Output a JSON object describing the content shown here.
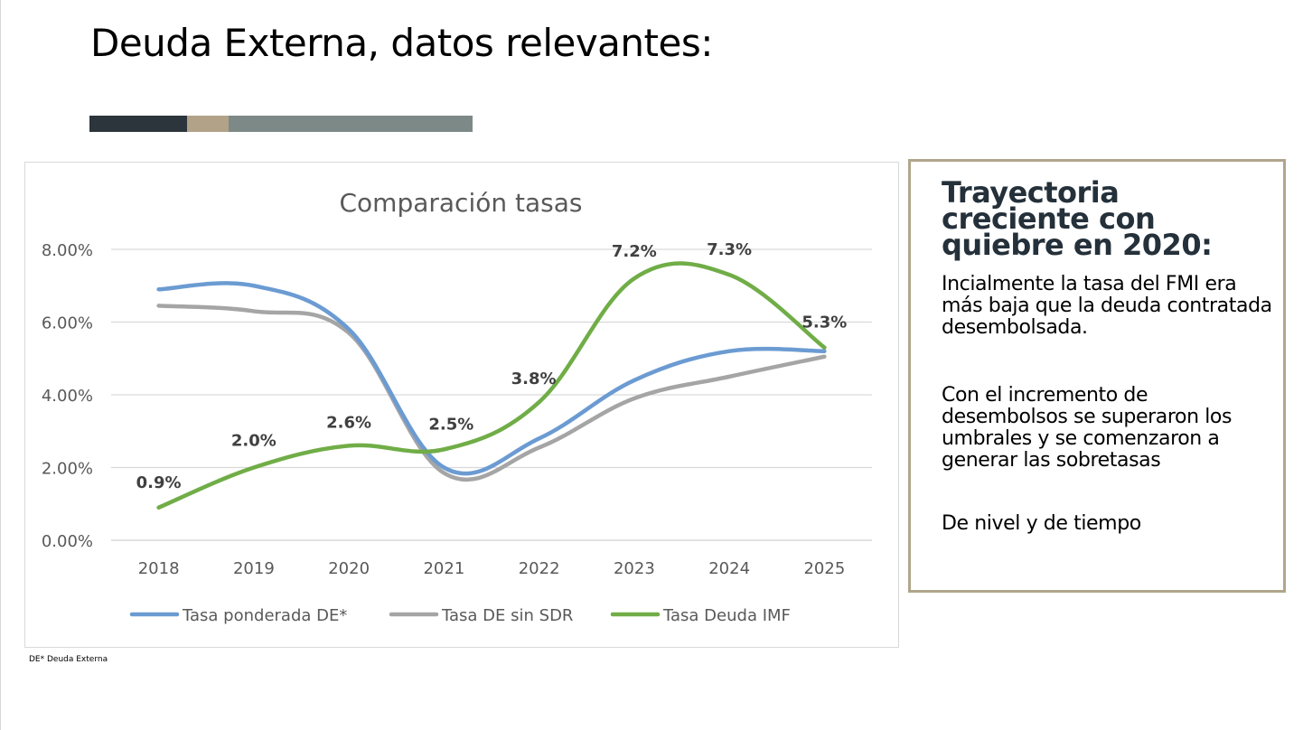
{
  "slide": {
    "title": "Deuda Externa, datos relevantes:",
    "title_bar_colors": [
      "#2b353b",
      "#b1a288",
      "#7d8987"
    ],
    "footnote": "DE* Deuda Externa"
  },
  "side_panel": {
    "heading": "Trayectoria creciente con quiebre en 2020:",
    "paragraph_1": "Incialmente la tasa del FMI era más baja que la deuda contratada desembolsada.",
    "paragraph_2": "Con el incremento de desembolsos se superaron los umbrales y se comenzaron a generar las sobretasas",
    "paragraph_3": "De nivel y de tiempo",
    "border_color": "#b0a68c"
  },
  "chart_data": {
    "type": "line",
    "title": "Comparación tasas",
    "x": [
      "2018",
      "2019",
      "2020",
      "2021",
      "2022",
      "2023",
      "2024",
      "2025"
    ],
    "y_ticks": [
      "0.00%",
      "2.00%",
      "4.00%",
      "6.00%",
      "8.00%"
    ],
    "ylim": [
      0,
      8
    ],
    "grid": true,
    "smooth": true,
    "legend": "bottom",
    "series": [
      {
        "name": "Tasa ponderada DE*",
        "color": "#6b9bd2",
        "values": [
          6.9,
          7.0,
          5.8,
          2.0,
          2.8,
          4.4,
          5.2,
          5.2
        ]
      },
      {
        "name": "Tasa DE sin SDR",
        "color": "#a5a5a5",
        "values": [
          6.45,
          6.3,
          5.7,
          1.85,
          2.55,
          3.9,
          4.5,
          5.05
        ]
      },
      {
        "name": "Tasa Deuda IMF",
        "color": "#70ad47",
        "values": [
          0.9,
          2.0,
          2.6,
          2.5,
          3.8,
          7.2,
          7.3,
          5.3
        ],
        "data_labels": [
          "0.9%",
          "2.0%",
          "2.6%",
          "2.5%",
          "3.8%",
          "7.2%",
          "7.3%",
          "5.3%"
        ]
      }
    ]
  }
}
